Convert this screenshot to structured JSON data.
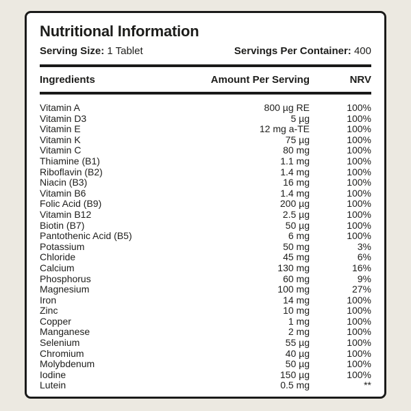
{
  "colors": {
    "page_background": "#ECE9E1",
    "card_background": "#FFFFFF",
    "border_and_text": "#1A1A19"
  },
  "card": {
    "title": "Nutritional Information",
    "serving_size_label": "Serving Size:",
    "serving_size_value": "1 Tablet",
    "servings_per_container_label": "Servings Per Container:",
    "servings_per_container_value": "400"
  },
  "columns": {
    "ingredients": "Ingredients",
    "amount": "Amount Per Serving",
    "nrv": "NRV"
  },
  "rows": [
    {
      "name": "Vitamin A",
      "amount": "800 µg RE",
      "nrv": "100%"
    },
    {
      "name": "Vitamin D3",
      "amount": "5 µg",
      "nrv": "100%"
    },
    {
      "name": "Vitamin E",
      "amount": "12 mg a-TE",
      "nrv": "100%"
    },
    {
      "name": "Vitamin K",
      "amount": "75 µg",
      "nrv": "100%"
    },
    {
      "name": "Vitamin C",
      "amount": "80 mg",
      "nrv": "100%"
    },
    {
      "name": "Thiamine (B1)",
      "amount": "1.1 mg",
      "nrv": "100%"
    },
    {
      "name": "Riboflavin (B2)",
      "amount": "1.4 mg",
      "nrv": "100%"
    },
    {
      "name": "Niacin (B3)",
      "amount": "16 mg",
      "nrv": "100%"
    },
    {
      "name": "Vitamin B6",
      "amount": "1.4 mg",
      "nrv": "100%"
    },
    {
      "name": "Folic Acid (B9)",
      "amount": "200 µg",
      "nrv": "100%"
    },
    {
      "name": "Vitamin B12",
      "amount": "2.5 µg",
      "nrv": "100%"
    },
    {
      "name": "Biotin (B7)",
      "amount": "50 µg",
      "nrv": "100%"
    },
    {
      "name": "Pantothenic Acid (B5)",
      "amount": "6 mg",
      "nrv": "100%"
    },
    {
      "name": "Potassium",
      "amount": "50 mg",
      "nrv": "3%"
    },
    {
      "name": "Chloride",
      "amount": "45 mg",
      "nrv": "6%"
    },
    {
      "name": "Calcium",
      "amount": "130 mg",
      "nrv": "16%"
    },
    {
      "name": "Phosphorus",
      "amount": "60 mg",
      "nrv": "9%"
    },
    {
      "name": "Magnesium",
      "amount": "100 mg",
      "nrv": "27%"
    },
    {
      "name": "Iron",
      "amount": "14 mg",
      "nrv": "100%"
    },
    {
      "name": "Zinc",
      "amount": "10 mg",
      "nrv": "100%"
    },
    {
      "name": "Copper",
      "amount": "1 mg",
      "nrv": "100%"
    },
    {
      "name": "Manganese",
      "amount": "2 mg",
      "nrv": "100%"
    },
    {
      "name": "Selenium",
      "amount": "55 µg",
      "nrv": "100%"
    },
    {
      "name": "Chromium",
      "amount": "40 µg",
      "nrv": "100%"
    },
    {
      "name": "Molybdenum",
      "amount": "50 µg",
      "nrv": "100%"
    },
    {
      "name": "Iodine",
      "amount": "150 µg",
      "nrv": "100%"
    },
    {
      "name": "Lutein",
      "amount": "0.5 mg",
      "nrv": "**"
    }
  ]
}
